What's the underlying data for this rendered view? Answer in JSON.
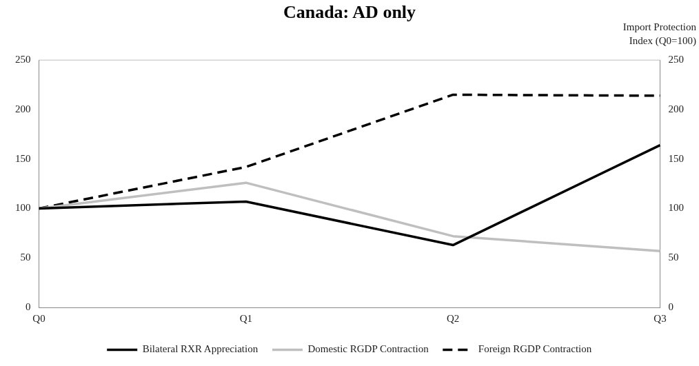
{
  "chart_data": {
    "type": "line",
    "title": "Canada: AD only",
    "y2label": "Import Protection Index (Q0=100)",
    "categories": [
      "Q0",
      "Q1",
      "Q2",
      "Q3"
    ],
    "series": [
      {
        "name": "Bilateral RXR Appreciation",
        "color": "#000000",
        "values": [
          100,
          107,
          63,
          164
        ],
        "line_style": "solid"
      },
      {
        "name": "Domestic RGDP Contraction",
        "color": "#bfbfbf",
        "values": [
          100,
          126,
          72,
          57
        ],
        "line_style": "solid"
      },
      {
        "name": "Foreign RGDP Contraction",
        "color": "#000000",
        "values": [
          100,
          142,
          215,
          214
        ],
        "line_style": "dashed"
      }
    ],
    "ylim": [
      0,
      250
    ],
    "yticks": [
      0,
      50,
      100,
      150,
      200,
      250
    ],
    "y2lim": [
      0,
      250
    ],
    "y2ticks": [
      0,
      50,
      100,
      150,
      200,
      250
    ],
    "grid": false,
    "legend": "bottom",
    "marker": "none"
  }
}
